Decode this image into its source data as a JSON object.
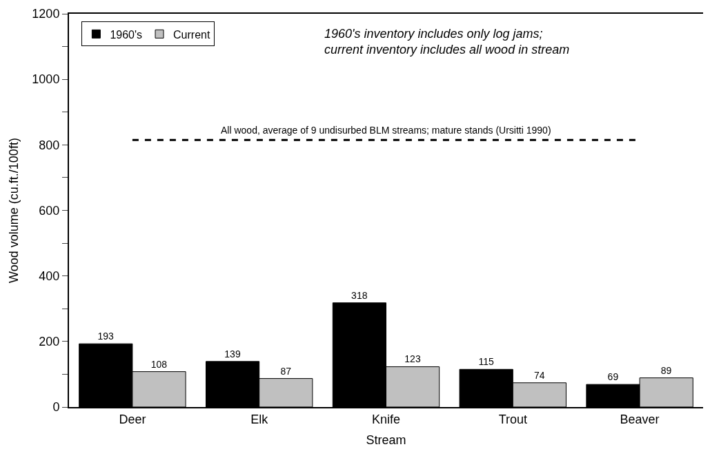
{
  "chart_data": {
    "type": "bar",
    "xlabel": "Stream",
    "ylabel": "Wood volume (cu.ft./100ft)",
    "categories": [
      "Deer",
      "Elk",
      "Knife",
      "Trout",
      "Beaver"
    ],
    "series": [
      {
        "name": "1960's",
        "color": "#000000",
        "values": [
          193,
          139,
          318,
          115,
          69
        ]
      },
      {
        "name": "Current",
        "color": "#c0c0c0",
        "values": [
          108,
          87,
          123,
          74,
          89
        ]
      }
    ],
    "ylim": [
      0,
      1200
    ],
    "yticks": [
      0,
      {
        "value": 100,
        "label": null
      },
      200,
      {
        "value": 300,
        "label": null
      },
      400,
      {
        "value": 500,
        "label": null
      },
      600,
      {
        "value": 700,
        "label": null
      },
      800,
      {
        "value": 900,
        "label": null
      },
      1000,
      {
        "value": 1100,
        "label": null
      },
      1200
    ],
    "data_labels": true,
    "legend": "top left",
    "ref_lines": [
      {
        "axis": "y",
        "value": 815,
        "label": "All wood, average of 9 undisurbed BLM streams; mature stands (Ursitti 1990)",
        "color": "#000000",
        "line_style": "dashed"
      }
    ],
    "annotations": [
      "1960's inventory includes only log jams;\ncurrent inventory includes all wood in stream"
    ]
  }
}
